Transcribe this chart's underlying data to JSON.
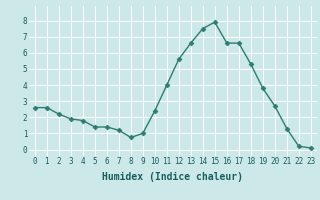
{
  "x": [
    0,
    1,
    2,
    3,
    4,
    5,
    6,
    7,
    8,
    9,
    10,
    11,
    12,
    13,
    14,
    15,
    16,
    17,
    18,
    19,
    20,
    21,
    22,
    23
  ],
  "y": [
    2.6,
    2.6,
    2.2,
    1.9,
    1.8,
    1.4,
    1.4,
    1.2,
    0.75,
    1.0,
    2.4,
    4.0,
    5.6,
    6.6,
    7.5,
    7.9,
    6.6,
    6.6,
    5.3,
    3.8,
    2.7,
    1.3,
    0.2,
    0.1
  ],
  "line_color": "#2e7d6e",
  "marker": "D",
  "markersize": 2.5,
  "linewidth": 1.0,
  "xlabel": "Humidex (Indice chaleur)",
  "xlabel_fontsize": 7,
  "xlim": [
    -0.5,
    23.5
  ],
  "ylim": [
    -0.4,
    8.9
  ],
  "yticks": [
    0,
    1,
    2,
    3,
    4,
    5,
    6,
    7,
    8
  ],
  "xticks": [
    0,
    1,
    2,
    3,
    4,
    5,
    6,
    7,
    8,
    9,
    10,
    11,
    12,
    13,
    14,
    15,
    16,
    17,
    18,
    19,
    20,
    21,
    22,
    23
  ],
  "xtick_labels": [
    "0",
    "1",
    "2",
    "3",
    "4",
    "5",
    "6",
    "7",
    "8",
    "9",
    "10",
    "11",
    "12",
    "13",
    "14",
    "15",
    "16",
    "17",
    "18",
    "19",
    "20",
    "21",
    "22",
    "23"
  ],
  "bg_color": "#cce8e8",
  "grid_color": "#ffffff",
  "tick_label_fontsize": 5.5,
  "tick_color": "#1a5f5f",
  "xlabel_color": "#1a5f5f"
}
